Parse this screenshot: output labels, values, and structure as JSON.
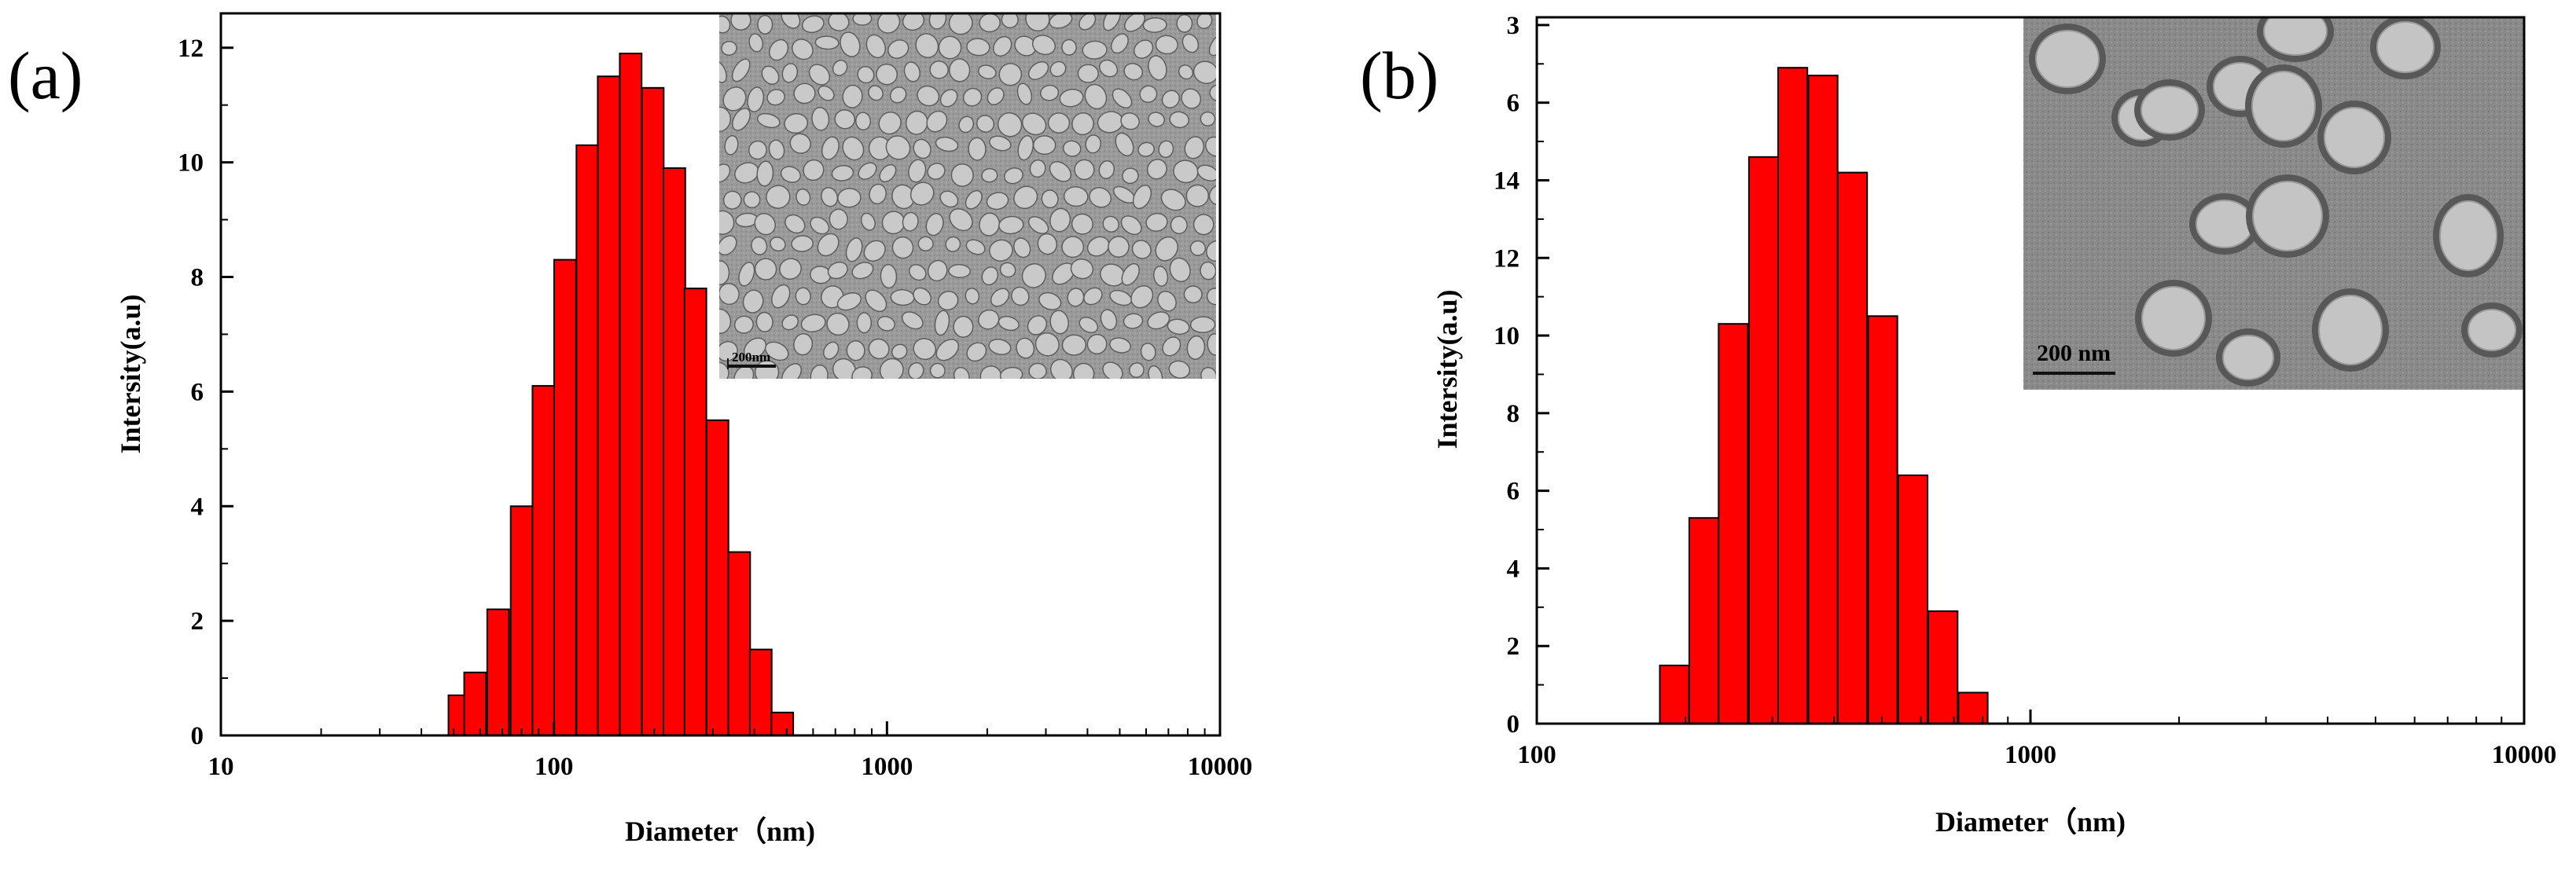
{
  "chart_data": [
    {
      "type": "bar",
      "panel_label": "(a)",
      "xscale": "log",
      "xlim": [
        10,
        10000
      ],
      "ylim": [
        0,
        12.6
      ],
      "xticks": [
        "10",
        "100",
        "1000",
        "10000"
      ],
      "yticks": [
        "0",
        "2",
        "4",
        "6",
        "8",
        "10",
        "12"
      ],
      "xlabel": "Diameter（nm)",
      "ylabel": "Intersity(a.u)",
      "bar_color": "#ff0000",
      "bars": [
        {
          "x": 52,
          "y": 0.7
        },
        {
          "x": 58,
          "y": 1.1
        },
        {
          "x": 68,
          "y": 2.2
        },
        {
          "x": 80,
          "y": 4.0
        },
        {
          "x": 93,
          "y": 6.1
        },
        {
          "x": 108,
          "y": 8.3
        },
        {
          "x": 126,
          "y": 10.3
        },
        {
          "x": 146,
          "y": 11.5
        },
        {
          "x": 170,
          "y": 11.9
        },
        {
          "x": 198,
          "y": 11.3
        },
        {
          "x": 230,
          "y": 9.9
        },
        {
          "x": 266,
          "y": 7.8
        },
        {
          "x": 310,
          "y": 5.5
        },
        {
          "x": 360,
          "y": 3.2
        },
        {
          "x": 418,
          "y": 1.5
        },
        {
          "x": 485,
          "y": 0.4
        }
      ],
      "inset": {
        "scale_bar": "200nm"
      }
    },
    {
      "type": "bar",
      "panel_label": "(b)",
      "xscale": "log",
      "xlim": [
        100,
        10000
      ],
      "ylim": [
        0,
        18.2
      ],
      "xticks": [
        "100",
        "1000",
        "10000"
      ],
      "yticks": [
        "0",
        "2",
        "4",
        "6",
        "8",
        "10",
        "12",
        "14",
        "16",
        "18"
      ],
      "ytick_label_overrides": {
        "16": "6",
        "18": "3"
      },
      "xlabel": "Diameter（nm)",
      "ylabel": "Intersity(a.u)",
      "bar_color": "#ff0000",
      "bars": [
        {
          "x": 190,
          "y": 1.5
        },
        {
          "x": 218,
          "y": 5.3
        },
        {
          "x": 250,
          "y": 10.3
        },
        {
          "x": 288,
          "y": 14.6
        },
        {
          "x": 330,
          "y": 16.9
        },
        {
          "x": 380,
          "y": 16.7
        },
        {
          "x": 436,
          "y": 14.2
        },
        {
          "x": 502,
          "y": 10.5
        },
        {
          "x": 578,
          "y": 6.4
        },
        {
          "x": 665,
          "y": 2.9
        },
        {
          "x": 765,
          "y": 0.8
        }
      ],
      "inset": {
        "scale_bar": "200 nm"
      }
    }
  ]
}
